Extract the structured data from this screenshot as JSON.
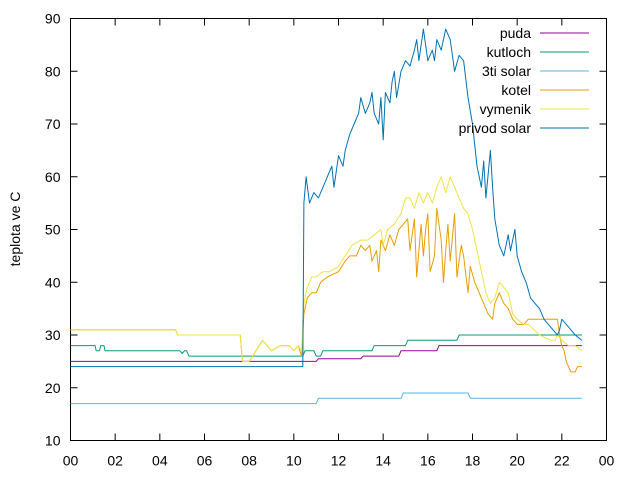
{
  "chart_data": {
    "type": "line",
    "title": "",
    "xlabel": "",
    "ylabel": "teplota ve C",
    "xlim": [
      0,
      24
    ],
    "ylim": [
      10,
      90
    ],
    "xticks": [
      "00",
      "02",
      "04",
      "06",
      "08",
      "10",
      "12",
      "14",
      "16",
      "18",
      "20",
      "22",
      "00"
    ],
    "yticks": [
      10,
      20,
      30,
      40,
      50,
      60,
      70,
      80,
      90
    ],
    "grid": false,
    "legend": "top-right",
    "series": [
      {
        "name": "puda",
        "color": "#990099",
        "points": [
          [
            0,
            25
          ],
          [
            10.4,
            25
          ],
          [
            11.0,
            25
          ],
          [
            11.1,
            25.5
          ],
          [
            13.0,
            25.5
          ],
          [
            13.1,
            26
          ],
          [
            14.7,
            26
          ],
          [
            14.8,
            27
          ],
          [
            16.4,
            27
          ],
          [
            16.5,
            28
          ],
          [
            22.9,
            28
          ]
        ]
      },
      {
        "name": "kutloch",
        "color": "#009e73",
        "points": [
          [
            0,
            28
          ],
          [
            1.1,
            28
          ],
          [
            1.15,
            27
          ],
          [
            1.3,
            27
          ],
          [
            1.35,
            28
          ],
          [
            1.5,
            28
          ],
          [
            1.55,
            27
          ],
          [
            4.9,
            27
          ],
          [
            5.0,
            26.5
          ],
          [
            5.1,
            27
          ],
          [
            5.2,
            27
          ],
          [
            5.3,
            26
          ],
          [
            10.4,
            26
          ],
          [
            10.5,
            27
          ],
          [
            10.9,
            27
          ],
          [
            11.0,
            26
          ],
          [
            11.2,
            26
          ],
          [
            11.3,
            27
          ],
          [
            13.5,
            27
          ],
          [
            13.6,
            28
          ],
          [
            15.0,
            28
          ],
          [
            15.1,
            29
          ],
          [
            17.3,
            29
          ],
          [
            17.4,
            30
          ],
          [
            22.9,
            30
          ]
        ]
      },
      {
        "name": "3ti solar",
        "color": "#56b4e9",
        "points": [
          [
            0,
            17
          ],
          [
            11.0,
            17
          ],
          [
            11.1,
            18
          ],
          [
            14.8,
            18
          ],
          [
            14.9,
            19
          ],
          [
            17.8,
            19
          ],
          [
            17.9,
            18
          ],
          [
            22.9,
            18
          ]
        ]
      },
      {
        "name": "kotel",
        "color": "#e69f00",
        "points": [
          [
            0,
            31
          ],
          [
            4.7,
            31
          ],
          [
            4.8,
            30
          ],
          [
            7.6,
            30
          ],
          [
            7.7,
            25
          ],
          [
            8.0,
            25
          ],
          [
            8.3,
            27
          ],
          [
            8.6,
            29
          ],
          [
            9.0,
            27
          ],
          [
            9.4,
            28
          ],
          [
            9.8,
            28
          ],
          [
            10.0,
            27
          ],
          [
            10.2,
            28
          ],
          [
            10.35,
            26
          ],
          [
            10.45,
            34
          ],
          [
            10.6,
            37
          ],
          [
            10.8,
            38
          ],
          [
            11.0,
            38
          ],
          [
            11.2,
            40
          ],
          [
            11.5,
            41
          ],
          [
            12.0,
            42
          ],
          [
            12.3,
            44
          ],
          [
            12.5,
            45
          ],
          [
            12.8,
            45
          ],
          [
            13.0,
            47
          ],
          [
            13.2,
            46
          ],
          [
            13.4,
            47
          ],
          [
            13.5,
            44
          ],
          [
            13.7,
            46
          ],
          [
            13.8,
            42
          ],
          [
            13.9,
            48
          ],
          [
            14.1,
            46
          ],
          [
            14.3,
            49
          ],
          [
            14.5,
            47
          ],
          [
            14.7,
            50
          ],
          [
            14.9,
            51
          ],
          [
            15.1,
            52
          ],
          [
            15.2,
            46
          ],
          [
            15.4,
            52
          ],
          [
            15.5,
            41
          ],
          [
            15.7,
            51
          ],
          [
            15.8,
            45
          ],
          [
            15.9,
            50
          ],
          [
            16.0,
            53
          ],
          [
            16.1,
            42
          ],
          [
            16.3,
            45
          ],
          [
            16.4,
            54
          ],
          [
            16.6,
            48
          ],
          [
            16.7,
            40
          ],
          [
            16.8,
            46
          ],
          [
            16.9,
            51
          ],
          [
            17.0,
            44
          ],
          [
            17.2,
            53
          ],
          [
            17.3,
            41
          ],
          [
            17.5,
            47
          ],
          [
            17.6,
            45
          ],
          [
            17.8,
            38
          ],
          [
            17.9,
            43
          ],
          [
            18.1,
            40
          ],
          [
            18.3,
            38
          ],
          [
            18.5,
            36
          ],
          [
            18.7,
            34
          ],
          [
            18.9,
            33
          ],
          [
            19.0,
            36
          ],
          [
            19.2,
            38
          ],
          [
            19.4,
            36
          ],
          [
            19.6,
            35
          ],
          [
            19.8,
            33
          ],
          [
            20.0,
            32
          ],
          [
            20.3,
            32
          ],
          [
            20.5,
            33
          ],
          [
            21.0,
            33
          ],
          [
            21.5,
            33
          ],
          [
            21.8,
            33
          ],
          [
            21.9,
            30
          ],
          [
            22.0,
            28
          ],
          [
            22.1,
            27
          ],
          [
            22.2,
            25
          ],
          [
            22.3,
            24
          ],
          [
            22.4,
            23
          ],
          [
            22.6,
            23
          ],
          [
            22.7,
            24
          ],
          [
            22.9,
            24
          ]
        ]
      },
      {
        "name": "vymenik",
        "color": "#f0e442",
        "points": [
          [
            0,
            31
          ],
          [
            4.7,
            31
          ],
          [
            4.8,
            30
          ],
          [
            7.6,
            30
          ],
          [
            7.7,
            25
          ],
          [
            8.0,
            25
          ],
          [
            8.3,
            27
          ],
          [
            8.6,
            29
          ],
          [
            9.0,
            27
          ],
          [
            9.4,
            28
          ],
          [
            9.8,
            28
          ],
          [
            10.0,
            27
          ],
          [
            10.2,
            28
          ],
          [
            10.35,
            27
          ],
          [
            10.45,
            36
          ],
          [
            10.6,
            39
          ],
          [
            10.8,
            41
          ],
          [
            11.0,
            41
          ],
          [
            11.3,
            42
          ],
          [
            11.6,
            42
          ],
          [
            12.0,
            43
          ],
          [
            12.3,
            45
          ],
          [
            12.6,
            47
          ],
          [
            13.0,
            48
          ],
          [
            13.3,
            48
          ],
          [
            13.6,
            49
          ],
          [
            13.9,
            50
          ],
          [
            14.0,
            47
          ],
          [
            14.2,
            50
          ],
          [
            14.5,
            51
          ],
          [
            14.8,
            53
          ],
          [
            15.0,
            56
          ],
          [
            15.2,
            56
          ],
          [
            15.4,
            54
          ],
          [
            15.6,
            57
          ],
          [
            15.8,
            55
          ],
          [
            16.0,
            57
          ],
          [
            16.2,
            55
          ],
          [
            16.4,
            58
          ],
          [
            16.6,
            60
          ],
          [
            16.8,
            57
          ],
          [
            17.0,
            60
          ],
          [
            17.2,
            58
          ],
          [
            17.4,
            56
          ],
          [
            17.6,
            54
          ],
          [
            17.8,
            53
          ],
          [
            18.0,
            50
          ],
          [
            18.2,
            46
          ],
          [
            18.4,
            42
          ],
          [
            18.6,
            38
          ],
          [
            18.8,
            36
          ],
          [
            19.0,
            37
          ],
          [
            19.2,
            40
          ],
          [
            19.4,
            39
          ],
          [
            19.6,
            38
          ],
          [
            19.8,
            34
          ],
          [
            20.0,
            33
          ],
          [
            20.3,
            32
          ],
          [
            20.5,
            32
          ],
          [
            21.0,
            30
          ],
          [
            21.5,
            29
          ],
          [
            21.7,
            29
          ],
          [
            21.8,
            30
          ],
          [
            22.0,
            29
          ],
          [
            22.3,
            28
          ],
          [
            22.6,
            28
          ],
          [
            22.9,
            27
          ]
        ]
      },
      {
        "name": "privod solar",
        "color": "#0072b2",
        "points": [
          [
            0,
            24
          ],
          [
            3.0,
            24
          ],
          [
            3.1,
            24
          ],
          [
            10.4,
            24
          ],
          [
            10.45,
            55
          ],
          [
            10.55,
            60
          ],
          [
            10.7,
            55
          ],
          [
            10.9,
            57
          ],
          [
            11.1,
            56
          ],
          [
            11.3,
            58
          ],
          [
            11.5,
            60
          ],
          [
            11.7,
            62
          ],
          [
            11.8,
            58
          ],
          [
            12.0,
            64
          ],
          [
            12.2,
            62
          ],
          [
            12.3,
            65
          ],
          [
            12.5,
            68
          ],
          [
            12.7,
            70
          ],
          [
            12.9,
            72
          ],
          [
            13.0,
            75
          ],
          [
            13.2,
            72
          ],
          [
            13.4,
            74
          ],
          [
            13.5,
            76
          ],
          [
            13.6,
            72
          ],
          [
            13.8,
            70
          ],
          [
            13.9,
            75
          ],
          [
            14.0,
            67
          ],
          [
            14.1,
            76
          ],
          [
            14.3,
            74
          ],
          [
            14.4,
            78
          ],
          [
            14.5,
            80
          ],
          [
            14.6,
            75
          ],
          [
            14.8,
            80
          ],
          [
            15.0,
            82
          ],
          [
            15.2,
            81
          ],
          [
            15.4,
            84
          ],
          [
            15.5,
            86
          ],
          [
            15.6,
            82
          ],
          [
            15.8,
            88
          ],
          [
            16.0,
            82
          ],
          [
            16.2,
            84
          ],
          [
            16.3,
            82
          ],
          [
            16.4,
            86
          ],
          [
            16.6,
            84
          ],
          [
            16.8,
            88
          ],
          [
            17.0,
            86
          ],
          [
            17.2,
            80
          ],
          [
            17.4,
            83
          ],
          [
            17.6,
            82
          ],
          [
            17.8,
            75
          ],
          [
            18.0,
            70
          ],
          [
            18.2,
            62
          ],
          [
            18.4,
            58
          ],
          [
            18.5,
            63
          ],
          [
            18.6,
            56
          ],
          [
            18.8,
            65
          ],
          [
            18.9,
            58
          ],
          [
            19.0,
            52
          ],
          [
            19.2,
            47
          ],
          [
            19.4,
            45
          ],
          [
            19.6,
            49
          ],
          [
            19.7,
            46
          ],
          [
            19.9,
            50
          ],
          [
            20.0,
            45
          ],
          [
            20.2,
            42
          ],
          [
            20.4,
            40
          ],
          [
            20.6,
            37
          ],
          [
            20.8,
            36
          ],
          [
            21.0,
            35
          ],
          [
            21.2,
            33
          ],
          [
            21.4,
            32
          ],
          [
            21.6,
            31
          ],
          [
            21.8,
            30
          ],
          [
            21.9,
            31
          ],
          [
            22.0,
            33
          ],
          [
            22.2,
            32
          ],
          [
            22.4,
            31
          ],
          [
            22.6,
            30
          ],
          [
            22.9,
            29
          ]
        ]
      }
    ]
  }
}
